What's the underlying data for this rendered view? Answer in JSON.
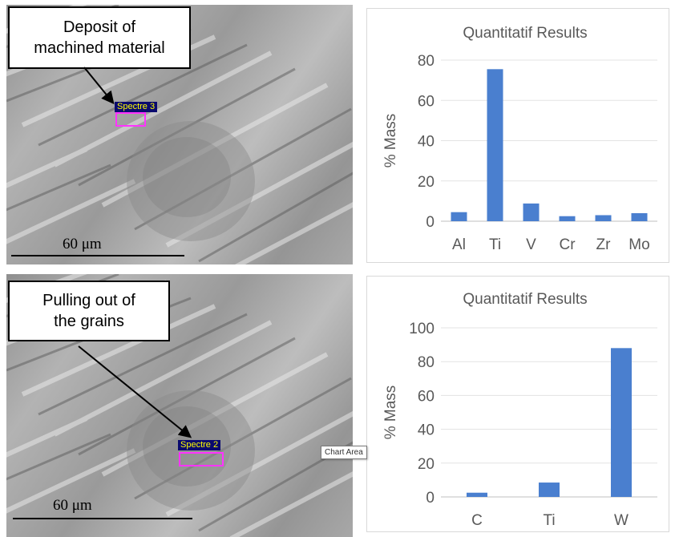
{
  "panels": [
    {
      "callout_lines": [
        "Deposit of",
        "machined material"
      ],
      "spectre_label": "Spectre 3",
      "scale_label": "60 μm"
    },
    {
      "callout_lines": [
        "Pulling out of",
        "the grains"
      ],
      "spectre_label": "Spectre 2",
      "scale_label": "60 μm"
    }
  ],
  "tooltip": "Chart Area",
  "chart_data": [
    {
      "type": "bar",
      "title": "Quantitatif Results",
      "ylabel": "% Mass",
      "categories": [
        "Al",
        "Ti",
        "V",
        "Cr",
        "Zr",
        "Mo"
      ],
      "values": [
        4.5,
        75.5,
        8.8,
        2.5,
        3.0,
        4.0
      ],
      "ylim": [
        0,
        80
      ],
      "yticks": [
        0,
        20,
        40,
        60,
        80
      ],
      "grid": true,
      "color": "#4a7fcf"
    },
    {
      "type": "bar",
      "title": "Quantitatif Results",
      "ylabel": "% Mass",
      "categories": [
        "C",
        "Ti",
        "W"
      ],
      "values": [
        2.5,
        8.5,
        88
      ],
      "ylim": [
        0,
        100
      ],
      "yticks": [
        0,
        20,
        40,
        60,
        80,
        100
      ],
      "grid": true,
      "color": "#4a7fcf"
    }
  ]
}
